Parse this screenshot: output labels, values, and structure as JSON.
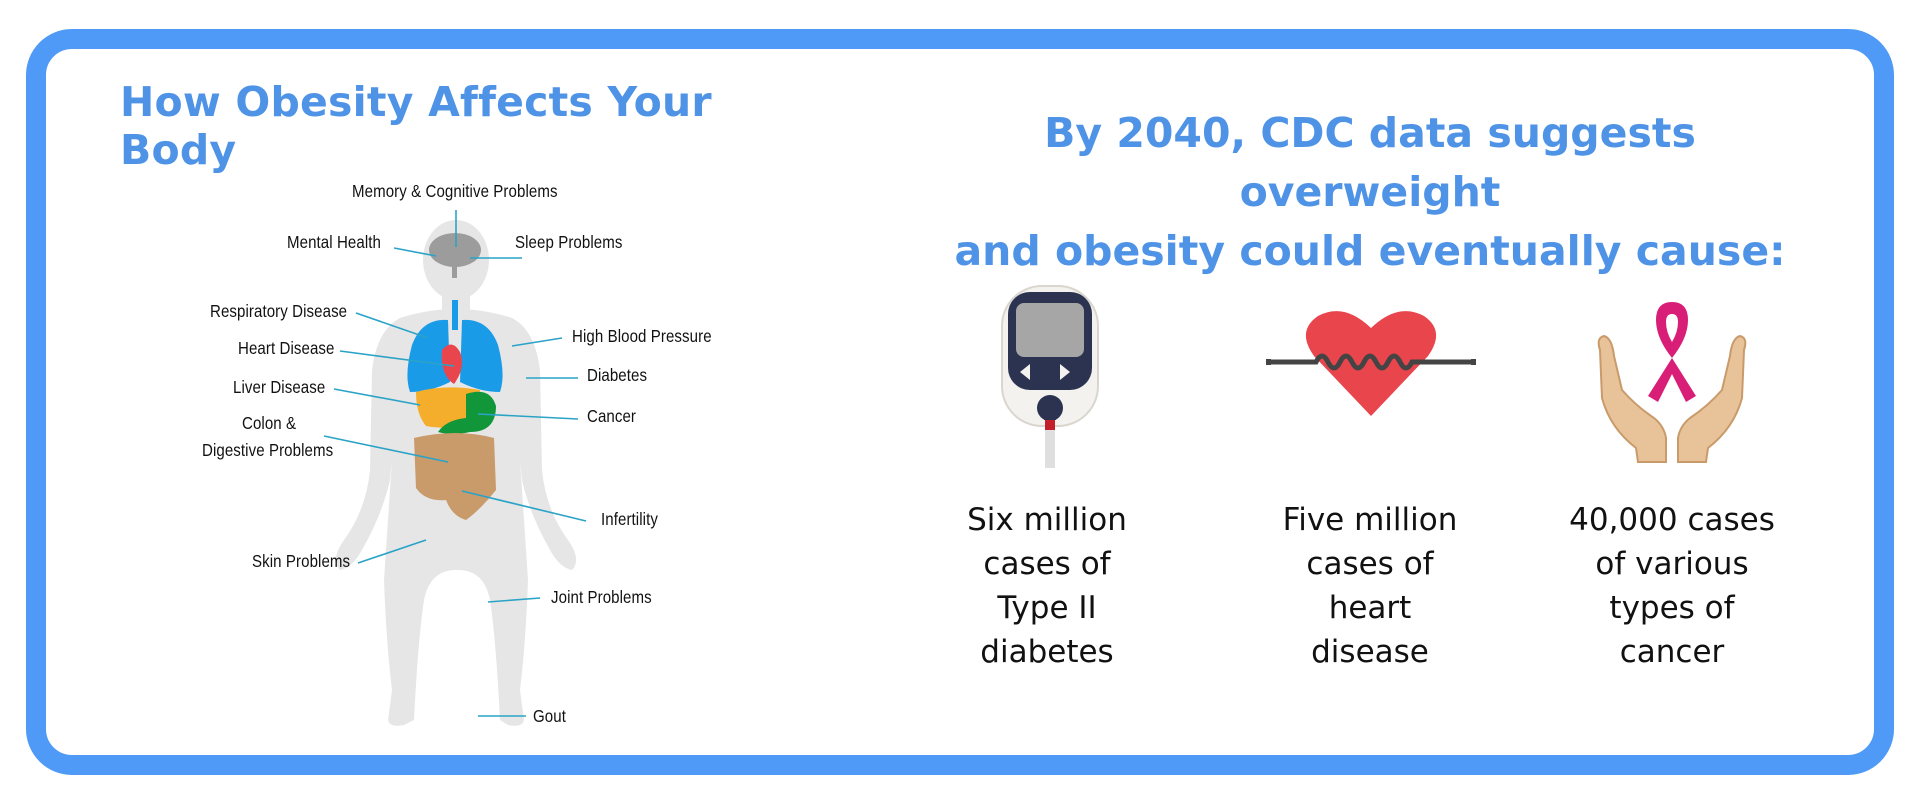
{
  "left": {
    "title": "How Obesity Affects Your Body",
    "labels": {
      "memory": "Memory & Cognitive Problems",
      "mental": "Mental Health",
      "sleep": "Sleep Problems",
      "respiratory": "Respiratory Disease",
      "bloodpressure": "High Blood Pressure",
      "heart": "Heart Disease",
      "diabetes": "Diabetes",
      "liver": "Liver Disease",
      "cancer": "Cancer",
      "colon1": "Colon &",
      "colon2": "Digestive Problems",
      "infertility": "Infertility",
      "skin": "Skin Problems",
      "joint": "Joint Problems",
      "gout": "Gout"
    }
  },
  "right": {
    "title_line1": "By 2040, CDC data suggests overweight",
    "title_line2": "and obesity could eventually cause:",
    "stats": [
      {
        "icon": "glucose-meter-icon",
        "lines": [
          "Six million",
          "cases of",
          "Type II",
          "diabetes"
        ]
      },
      {
        "icon": "heart-heartbeat-icon",
        "lines": [
          "Five million",
          "cases of",
          "heart",
          "disease"
        ]
      },
      {
        "icon": "hands-ribbon-icon",
        "lines": [
          "40,000 cases",
          "of various",
          "types of",
          "cancer"
        ]
      }
    ]
  },
  "colors": {
    "frame": "#4f9af7",
    "title": "#4f93e6",
    "leader": "#2aa3c7",
    "lungs": "#1a9be8",
    "heart": "#e8454d",
    "liver": "#f5ad2c",
    "stomach": "#12963a",
    "intestines": "#c99a6a",
    "brain": "#9c9c9c",
    "body": "#e6e6e6",
    "ribbon": "#d81e77"
  }
}
